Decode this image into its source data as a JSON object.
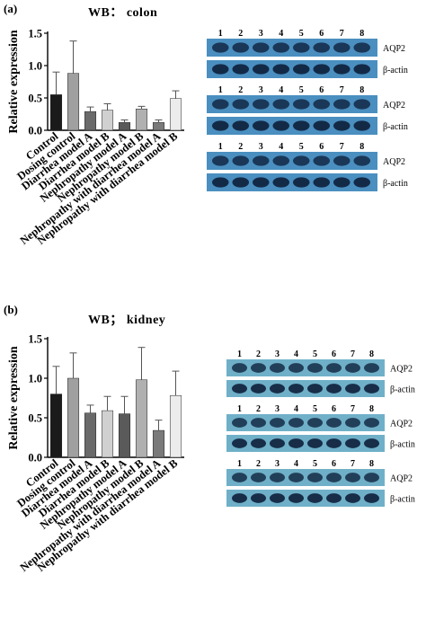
{
  "chart_data": [
    {
      "type": "bar",
      "panel_label": "(a)",
      "title": "WB： colon",
      "ylabel": "Relative expression",
      "xlabel": "",
      "ylim": [
        0,
        1.5
      ],
      "yticks": [
        "0.0",
        "0.5",
        "1.0",
        "1.5"
      ],
      "categories": [
        "Control",
        "Dosing control",
        "Diarrhea model A",
        "Diarrhea model B",
        "Nephropathy model A",
        "Nephropathy model B",
        "Nephropathy with diarrhea model A",
        "Nephropathy with diarrhea model B"
      ],
      "values": [
        0.55,
        0.88,
        0.29,
        0.31,
        0.12,
        0.33,
        0.12,
        0.49
      ],
      "errors": [
        0.35,
        0.5,
        0.07,
        0.1,
        0.04,
        0.04,
        0.04,
        0.12
      ],
      "colors": [
        "#1a1a1a",
        "#a0a0a0",
        "#6a6a6a",
        "#d0d0d0",
        "#5a5a5a",
        "#b0b0b0",
        "#7a7a7a",
        "#ececec"
      ],
      "grid": false,
      "legend": "none"
    },
    {
      "type": "bar",
      "panel_label": "(b)",
      "title": "WB； kidney",
      "ylabel": "Relative expression",
      "xlabel": "",
      "ylim": [
        0,
        1.5
      ],
      "yticks": [
        "0.0",
        "0.5",
        "1.0",
        "1.5"
      ],
      "categories": [
        "Control",
        "Dosing control",
        "Diarrhea model A",
        "Diarrhea model B",
        "Nephropathy model A",
        "Nephropathy model B",
        "Nephropathy with diarrhea model A",
        "Nephropathy with diarrhea model B"
      ],
      "values": [
        0.8,
        1.0,
        0.56,
        0.59,
        0.55,
        0.98,
        0.34,
        0.78
      ],
      "errors": [
        0.35,
        0.32,
        0.1,
        0.18,
        0.22,
        0.41,
        0.13,
        0.31
      ],
      "colors": [
        "#1a1a1a",
        "#a0a0a0",
        "#6a6a6a",
        "#d0d0d0",
        "#5a5a5a",
        "#b0b0b0",
        "#7a7a7a",
        "#ececec"
      ],
      "grid": false,
      "legend": "none"
    }
  ],
  "blots": {
    "colon": {
      "lane_numbers": [
        "1",
        "2",
        "3",
        "4",
        "5",
        "6",
        "7",
        "8"
      ],
      "rows": [
        "AQP2",
        "β-actin",
        "AQP2",
        "β-actin",
        "AQP2",
        "β-actin"
      ],
      "background": "#4a8fc0",
      "band_color": "#0d1f3a"
    },
    "kidney": {
      "lane_numbers": [
        "1",
        "2",
        "3",
        "4",
        "5",
        "6",
        "7",
        "8"
      ],
      "rows": [
        "AQP2",
        "β-actin",
        "AQP2",
        "β-actin",
        "AQP2",
        "β-actin"
      ],
      "background": "#6fb0c8",
      "band_color": "#0d1f3a"
    }
  }
}
